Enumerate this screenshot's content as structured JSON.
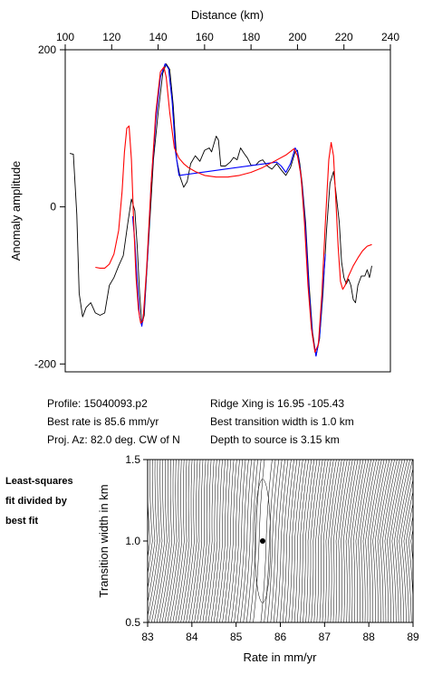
{
  "chart_data": [
    {
      "type": "line",
      "xlabel": "Distance (km)",
      "ylabel": "Anomaly amplitude",
      "xlim": [
        100,
        240
      ],
      "ylim": [
        -210,
        200
      ],
      "x_ticks": [
        100,
        120,
        140,
        160,
        180,
        200,
        220,
        240
      ],
      "y_ticks": [
        -200,
        0,
        200
      ],
      "x_tick_labels": [
        "100",
        "120",
        "140",
        "160",
        "180",
        "200",
        "220",
        "240"
      ],
      "y_tick_labels": [
        "-200",
        "0",
        "200"
      ],
      "x_axis_position": "top",
      "grid": false,
      "series": [
        {
          "color": "#000000",
          "points": [
            [
              102,
              68
            ],
            [
              103.5,
              67
            ],
            [
              105,
              -10
            ],
            [
              106,
              -110
            ],
            [
              107.5,
              -140
            ],
            [
              109,
              -128
            ],
            [
              111,
              -122
            ],
            [
              113,
              -135
            ],
            [
              115,
              -138
            ],
            [
              117,
              -135
            ],
            [
              119,
              -100
            ],
            [
              121,
              -90
            ],
            [
              123,
              -75
            ],
            [
              125,
              -62
            ],
            [
              127,
              -20
            ],
            [
              128.5,
              10
            ],
            [
              130,
              -5
            ],
            [
              131,
              -50
            ],
            [
              132,
              -110
            ],
            [
              133,
              -150
            ],
            [
              134,
              -138
            ],
            [
              136,
              -40
            ],
            [
              138,
              60
            ],
            [
              140,
              120
            ],
            [
              142,
              170
            ],
            [
              143.5,
              182
            ],
            [
              145,
              175
            ],
            [
              146.5,
              130
            ],
            [
              148,
              60
            ],
            [
              149.5,
              38
            ],
            [
              151,
              25
            ],
            [
              152.5,
              32
            ],
            [
              154,
              55
            ],
            [
              156,
              65
            ],
            [
              158,
              58
            ],
            [
              160,
              72
            ],
            [
              162,
              75
            ],
            [
              163,
              70
            ],
            [
              164,
              80
            ],
            [
              165,
              90
            ],
            [
              166,
              85
            ],
            [
              167,
              52
            ],
            [
              169,
              52
            ],
            [
              171,
              57
            ],
            [
              172.5,
              63
            ],
            [
              174,
              60
            ],
            [
              175.5,
              75
            ],
            [
              177,
              68
            ],
            [
              178.5,
              62
            ],
            [
              180,
              53
            ],
            [
              182,
              53
            ],
            [
              183.5,
              58
            ],
            [
              185,
              60
            ],
            [
              187,
              52
            ],
            [
              189,
              48
            ],
            [
              191,
              55
            ],
            [
              193,
              47
            ],
            [
              195,
              40
            ],
            [
              197,
              50
            ],
            [
              199,
              70
            ],
            [
              200,
              72
            ],
            [
              201,
              55
            ],
            [
              202,
              30
            ],
            [
              203.5,
              -20
            ],
            [
              205,
              -100
            ],
            [
              206.5,
              -160
            ],
            [
              208,
              -190
            ],
            [
              209.5,
              -168
            ],
            [
              211,
              -110
            ],
            [
              212.5,
              -30
            ],
            [
              214,
              30
            ],
            [
              215.5,
              45
            ],
            [
              216.5,
              20
            ],
            [
              218,
              -20
            ],
            [
              219,
              -70
            ],
            [
              220,
              -90
            ],
            [
              221,
              -98
            ],
            [
              222,
              -92
            ],
            [
              223,
              -100
            ],
            [
              224,
              -118
            ],
            [
              225,
              -122
            ],
            [
              226,
              -100
            ],
            [
              227.5,
              -88
            ],
            [
              229,
              -88
            ],
            [
              230,
              -80
            ],
            [
              231,
              -90
            ],
            [
              232,
              -75
            ]
          ]
        },
        {
          "color": "#0000ff",
          "points": [
            [
              129,
              -12
            ],
            [
              130,
              -45
            ],
            [
              131,
              -95
            ],
            [
              132,
              -140
            ],
            [
              133,
              -152
            ],
            [
              134,
              -130
            ],
            [
              135.5,
              -60
            ],
            [
              137,
              30
            ],
            [
              139,
              110
            ],
            [
              141,
              165
            ],
            [
              143,
              182
            ],
            [
              144.5,
              176
            ],
            [
              146,
              135
            ],
            [
              147.5,
              70
            ],
            [
              149,
              40
            ],
            [
              191,
              57
            ],
            [
              193,
              52
            ],
            [
              195,
              44
            ],
            [
              197,
              55
            ],
            [
              199,
              75
            ],
            [
              200,
              70
            ],
            [
              201,
              50
            ],
            [
              202,
              25
            ],
            [
              203.5,
              -30
            ],
            [
              205,
              -110
            ],
            [
              206.5,
              -165
            ],
            [
              208,
              -190
            ],
            [
              209.5,
              -165
            ],
            [
              211,
              -100
            ],
            [
              212,
              -60
            ]
          ]
        },
        {
          "color": "#ff0000",
          "points": [
            [
              113,
              -77
            ],
            [
              115,
              -78
            ],
            [
              117,
              -78
            ],
            [
              119,
              -73
            ],
            [
              121,
              -60
            ],
            [
              123,
              -30
            ],
            [
              124.5,
              20
            ],
            [
              125.5,
              70
            ],
            [
              126.5,
              100
            ],
            [
              127.5,
              103
            ],
            [
              128.5,
              60
            ],
            [
              129.5,
              -20
            ],
            [
              130.5,
              -90
            ],
            [
              131.5,
              -130
            ],
            [
              132.5,
              -148
            ],
            [
              133.5,
              -145
            ],
            [
              135,
              -80
            ],
            [
              137,
              30
            ],
            [
              139,
              120
            ],
            [
              141,
              172
            ],
            [
              142.5,
              178
            ],
            [
              143.5,
              165
            ],
            [
              145,
              120
            ],
            [
              147,
              75
            ],
            [
              149,
              62
            ],
            [
              151,
              55
            ],
            [
              153,
              50
            ],
            [
              156,
              45
            ],
            [
              160,
              40
            ],
            [
              165,
              38
            ],
            [
              170,
              38
            ],
            [
              175,
              40
            ],
            [
              180,
              44
            ],
            [
              185,
              50
            ],
            [
              190,
              58
            ],
            [
              195,
              66
            ],
            [
              198.5,
              74
            ],
            [
              200,
              65
            ],
            [
              201.5,
              40
            ],
            [
              203,
              -20
            ],
            [
              204.5,
              -100
            ],
            [
              206,
              -155
            ],
            [
              207.5,
              -185
            ],
            [
              209,
              -175
            ],
            [
              210.5,
              -110
            ],
            [
              212,
              -20
            ],
            [
              213.5,
              60
            ],
            [
              214.5,
              82
            ],
            [
              215.5,
              65
            ],
            [
              216.5,
              10
            ],
            [
              217.5,
              -50
            ],
            [
              218.5,
              -95
            ],
            [
              219.5,
              -105
            ],
            [
              220.5,
              -100
            ],
            [
              222,
              -88
            ],
            [
              224,
              -75
            ],
            [
              226,
              -65
            ],
            [
              228,
              -56
            ],
            [
              230,
              -50
            ],
            [
              232,
              -48
            ]
          ]
        }
      ]
    },
    {
      "type": "contour",
      "xlabel": "Rate in mm/yr",
      "ylabel": "Transition width in km",
      "xlim": [
        83,
        89
      ],
      "ylim": [
        0.5,
        1.5
      ],
      "x_ticks": [
        83,
        84,
        85,
        86,
        87,
        88,
        89
      ],
      "y_ticks": [
        0.5,
        1.0,
        1.5
      ],
      "x_tick_labels": [
        "83",
        "84",
        "85",
        "86",
        "87",
        "88",
        "89"
      ],
      "y_tick_labels": [
        "0.5",
        "1.0",
        "1.5"
      ],
      "best_fit_point": [
        85.6,
        1.0
      ],
      "grid": false
    }
  ],
  "info": {
    "profile": "Profile: 15040093.p2",
    "best_rate": "Best rate is 85.6 mm/yr",
    "proj_az": "Proj. Az: 82.0 deg. CW of N",
    "ridge_xing": "Ridge Xing is 16.95 -105.43",
    "best_width": "Best transition width is 1.0 km",
    "depth": "Depth to source is    3.15 km"
  },
  "side_note": [
    "Least-squares",
    "fit divided by",
    "best fit"
  ]
}
